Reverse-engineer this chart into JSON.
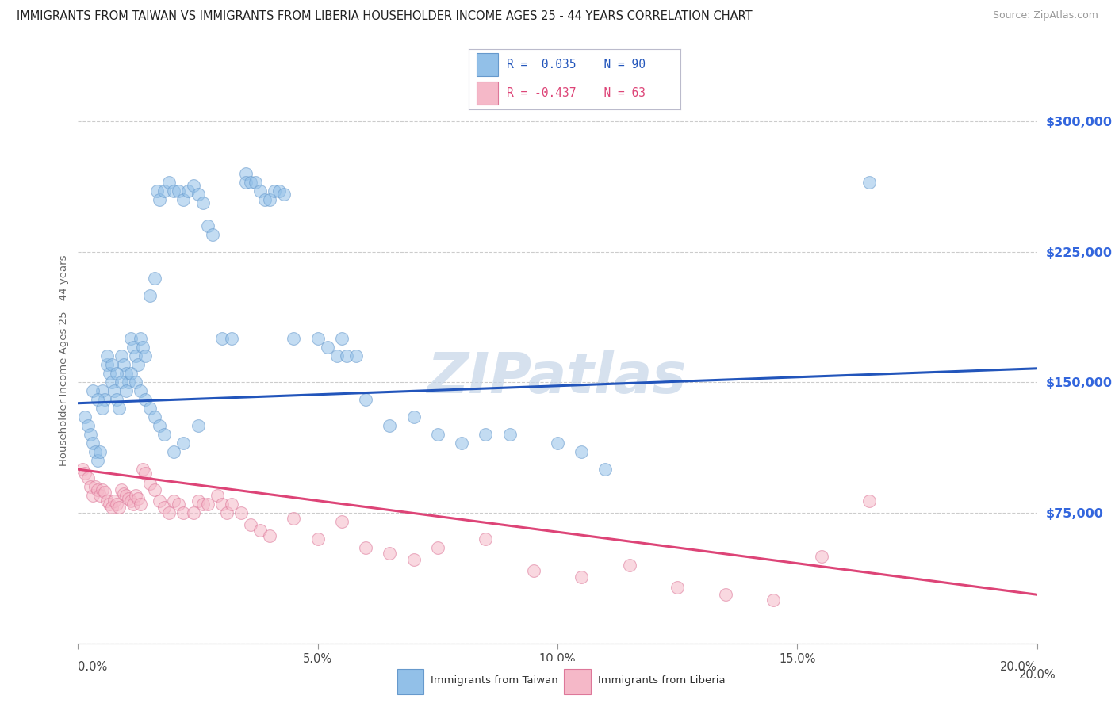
{
  "title": "IMMIGRANTS FROM TAIWAN VS IMMIGRANTS FROM LIBERIA HOUSEHOLDER INCOME AGES 25 - 44 YEARS CORRELATION CHART",
  "source": "Source: ZipAtlas.com",
  "ylabel": "Householder Income Ages 25 - 44 years",
  "yticks": [
    0,
    75000,
    150000,
    225000,
    300000
  ],
  "ytick_labels": [
    "",
    "$75,000",
    "$150,000",
    "$225,000",
    "$300,000"
  ],
  "xticks": [
    0,
    5,
    10,
    15,
    20
  ],
  "xtick_labels": [
    "",
    "",
    "",
    "",
    ""
  ],
  "xmin": 0.0,
  "xmax": 20.0,
  "ymin": 0,
  "ymax": 325000,
  "taiwan_color": "#92c0e8",
  "taiwan_edge_color": "#6699cc",
  "taiwan_line_color": "#2255bb",
  "liberia_color": "#f5b8c8",
  "liberia_edge_color": "#dd7799",
  "liberia_line_color": "#dd4477",
  "taiwan_scatter_x": [
    0.15,
    0.2,
    0.25,
    0.3,
    0.35,
    0.4,
    0.45,
    0.5,
    0.55,
    0.6,
    0.65,
    0.7,
    0.75,
    0.8,
    0.85,
    0.9,
    0.95,
    1.0,
    1.05,
    1.1,
    1.15,
    1.2,
    1.25,
    1.3,
    1.35,
    1.4,
    1.5,
    1.6,
    1.65,
    1.7,
    1.8,
    1.9,
    2.0,
    2.1,
    2.2,
    2.3,
    2.4,
    2.5,
    2.6,
    2.7,
    2.8,
    3.0,
    3.2,
    3.5,
    3.5,
    3.6,
    3.7,
    3.8,
    3.9,
    4.0,
    4.1,
    4.2,
    4.3,
    4.5,
    5.0,
    5.2,
    5.4,
    5.5,
    5.6,
    5.8,
    6.0,
    6.5,
    7.0,
    7.5,
    8.0,
    8.5,
    9.0,
    10.0,
    10.5,
    11.0,
    0.3,
    0.4,
    0.5,
    0.6,
    0.7,
    0.8,
    0.9,
    1.0,
    1.1,
    1.2,
    1.3,
    1.4,
    1.5,
    1.6,
    1.7,
    1.8,
    2.0,
    2.2,
    2.5,
    16.5
  ],
  "taiwan_scatter_y": [
    130000,
    125000,
    120000,
    115000,
    110000,
    105000,
    110000,
    145000,
    140000,
    160000,
    155000,
    150000,
    145000,
    140000,
    135000,
    165000,
    160000,
    155000,
    150000,
    175000,
    170000,
    165000,
    160000,
    175000,
    170000,
    165000,
    200000,
    210000,
    260000,
    255000,
    260000,
    265000,
    260000,
    260000,
    255000,
    260000,
    263000,
    258000,
    253000,
    240000,
    235000,
    175000,
    175000,
    270000,
    265000,
    265000,
    265000,
    260000,
    255000,
    255000,
    260000,
    260000,
    258000,
    175000,
    175000,
    170000,
    165000,
    175000,
    165000,
    165000,
    140000,
    125000,
    130000,
    120000,
    115000,
    120000,
    120000,
    115000,
    110000,
    100000,
    145000,
    140000,
    135000,
    165000,
    160000,
    155000,
    150000,
    145000,
    155000,
    150000,
    145000,
    140000,
    135000,
    130000,
    125000,
    120000,
    110000,
    115000,
    125000,
    265000
  ],
  "liberia_scatter_x": [
    0.1,
    0.15,
    0.2,
    0.25,
    0.3,
    0.35,
    0.4,
    0.45,
    0.5,
    0.55,
    0.6,
    0.65,
    0.7,
    0.75,
    0.8,
    0.85,
    0.9,
    0.95,
    1.0,
    1.05,
    1.1,
    1.15,
    1.2,
    1.25,
    1.3,
    1.35,
    1.4,
    1.5,
    1.6,
    1.7,
    1.8,
    1.9,
    2.0,
    2.1,
    2.2,
    2.4,
    2.5,
    2.6,
    2.7,
    2.9,
    3.0,
    3.1,
    3.2,
    3.4,
    3.6,
    3.8,
    4.0,
    4.5,
    5.0,
    5.5,
    6.0,
    6.5,
    7.0,
    7.5,
    8.5,
    9.5,
    10.5,
    11.5,
    12.5,
    13.5,
    14.5,
    15.5,
    16.5
  ],
  "liberia_scatter_y": [
    100000,
    98000,
    95000,
    90000,
    85000,
    90000,
    88000,
    85000,
    88000,
    87000,
    82000,
    80000,
    78000,
    82000,
    80000,
    78000,
    88000,
    86000,
    85000,
    83000,
    82000,
    80000,
    85000,
    83000,
    80000,
    100000,
    98000,
    92000,
    88000,
    82000,
    78000,
    75000,
    82000,
    80000,
    75000,
    75000,
    82000,
    80000,
    80000,
    85000,
    80000,
    75000,
    80000,
    75000,
    68000,
    65000,
    62000,
    72000,
    60000,
    70000,
    55000,
    52000,
    48000,
    55000,
    60000,
    42000,
    38000,
    45000,
    32000,
    28000,
    25000,
    50000,
    82000
  ],
  "taiwan_trendline_x": [
    0.0,
    20.0
  ],
  "taiwan_trendline_y": [
    138000,
    158000
  ],
  "liberia_trendline_x": [
    0.0,
    20.0
  ],
  "liberia_trendline_y": [
    100000,
    28000
  ],
  "watermark": "ZIPatlas",
  "watermark_color": "#c5d5e8",
  "legend_taiwan_label": "Immigrants from Taiwan",
  "legend_liberia_label": "Immigrants from Liberia",
  "background_color": "#ffffff",
  "title_fontsize": 10.5,
  "source_fontsize": 9,
  "axis_label_fontsize": 9.5,
  "tick_fontsize": 10.5,
  "scatter_size": 130,
  "scatter_alpha": 0.55,
  "scatter_linewidth": 0.8
}
